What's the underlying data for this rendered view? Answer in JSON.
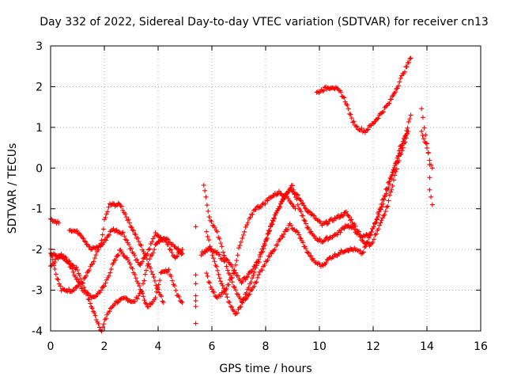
{
  "chart_data": {
    "type": "scatter",
    "title": "Day 332 of 2022, Sidereal Day-to-day VTEC variation (SDTVAR) for receiver cn13",
    "xlabel": "GPS time / hours",
    "ylabel": "SDTVAR / TECUs",
    "xlim": [
      0,
      16
    ],
    "ylim": [
      -4,
      3
    ],
    "xticks": [
      "0",
      "2",
      "4",
      "6",
      "8",
      "10",
      "12",
      "14",
      "16"
    ],
    "yticks": [
      "-4",
      "-3",
      "-2",
      "-1",
      "0",
      "1",
      "2",
      "3"
    ],
    "grid": true,
    "marker": "+",
    "color": "#ff0000",
    "series_tracks": [
      [
        [
          0.0,
          -1.25
        ],
        [
          0.3,
          -1.35
        ]
      ],
      [
        [
          0.0,
          -2.1
        ],
        [
          0.5,
          -2.2
        ],
        [
          1.0,
          -2.5
        ],
        [
          1.4,
          -3.2
        ],
        [
          1.7,
          -3.7
        ],
        [
          1.9,
          -4.0
        ],
        [
          2.1,
          -3.6
        ],
        [
          2.4,
          -3.3
        ],
        [
          2.8,
          -3.2
        ],
        [
          3.1,
          -3.3
        ],
        [
          3.4,
          -3.0
        ],
        [
          3.6,
          -2.4
        ],
        [
          3.9,
          -1.9
        ],
        [
          4.2,
          -1.7
        ],
        [
          4.6,
          -1.9
        ],
        [
          4.9,
          -2.1
        ]
      ],
      [
        [
          0.0,
          -2.0
        ],
        [
          0.2,
          -2.6
        ],
        [
          0.4,
          -3.0
        ],
        [
          0.8,
          -3.0
        ],
        [
          1.2,
          -2.8
        ],
        [
          1.6,
          -2.3
        ],
        [
          1.9,
          -1.8
        ],
        [
          2.0,
          -1.3
        ],
        [
          2.2,
          -0.9
        ],
        [
          2.6,
          -0.9
        ],
        [
          2.9,
          -1.3
        ],
        [
          3.2,
          -1.7
        ],
        [
          3.5,
          -2.1
        ],
        [
          3.8,
          -2.6
        ],
        [
          4.0,
          -3.0
        ],
        [
          4.2,
          -3.3
        ]
      ],
      [
        [
          0.0,
          -2.4
        ],
        [
          0.4,
          -2.1
        ],
        [
          0.8,
          -2.5
        ],
        [
          1.2,
          -3.0
        ],
        [
          1.6,
          -3.2
        ],
        [
          2.0,
          -2.9
        ],
        [
          2.3,
          -2.4
        ],
        [
          2.6,
          -2.0
        ],
        [
          3.0,
          -2.4
        ],
        [
          3.3,
          -2.9
        ],
        [
          3.6,
          -3.4
        ],
        [
          3.9,
          -3.2
        ],
        [
          4.1,
          -2.6
        ],
        [
          4.4,
          -2.5
        ],
        [
          4.7,
          -3.1
        ],
        [
          4.9,
          -3.3
        ]
      ],
      [
        [
          0.7,
          -1.5
        ],
        [
          1.1,
          -1.6
        ],
        [
          1.5,
          -2.0
        ],
        [
          1.9,
          -1.9
        ],
        [
          2.3,
          -1.5
        ],
        [
          2.7,
          -1.6
        ],
        [
          3.0,
          -2.0
        ],
        [
          3.3,
          -2.4
        ],
        [
          3.6,
          -2.1
        ],
        [
          3.9,
          -1.6
        ],
        [
          4.3,
          -1.8
        ],
        [
          4.6,
          -2.2
        ],
        [
          4.9,
          -2.0
        ]
      ],
      [
        [
          5.4,
          -1.4
        ],
        [
          5.4,
          -3.8
        ],
        [
          5.4,
          -2.8
        ],
        [
          5.4,
          -3.4
        ]
      ],
      [
        [
          5.7,
          -0.4
        ],
        [
          5.9,
          -1.2
        ],
        [
          6.2,
          -1.6
        ],
        [
          6.5,
          -2.2
        ],
        [
          6.8,
          -2.5
        ],
        [
          7.1,
          -2.8
        ],
        [
          7.4,
          -2.6
        ],
        [
          7.7,
          -2.3
        ],
        [
          8.0,
          -1.8
        ],
        [
          8.3,
          -1.2
        ],
        [
          8.6,
          -0.8
        ],
        [
          8.9,
          -0.5
        ],
        [
          9.2,
          -0.7
        ],
        [
          9.5,
          -1.0
        ],
        [
          9.8,
          -1.2
        ],
        [
          10.1,
          -1.4
        ],
        [
          10.4,
          -1.3
        ],
        [
          10.7,
          -1.2
        ],
        [
          11.0,
          -1.1
        ],
        [
          11.3,
          -1.4
        ],
        [
          11.6,
          -1.7
        ],
        [
          11.9,
          -1.6
        ],
        [
          12.1,
          -1.3
        ],
        [
          12.3,
          -0.9
        ],
        [
          12.6,
          -0.3
        ],
        [
          12.9,
          0.2
        ],
        [
          13.2,
          0.8
        ],
        [
          13.4,
          1.3
        ]
      ],
      [
        [
          5.8,
          -1.6
        ],
        [
          6.1,
          -2.3
        ],
        [
          6.4,
          -2.9
        ],
        [
          6.7,
          -3.4
        ],
        [
          6.9,
          -3.6
        ],
        [
          7.2,
          -3.2
        ],
        [
          7.5,
          -2.7
        ],
        [
          7.8,
          -2.2
        ],
        [
          8.1,
          -1.6
        ],
        [
          8.4,
          -1.1
        ],
        [
          8.7,
          -0.7
        ],
        [
          9.0,
          -0.4
        ],
        [
          9.2,
          -0.9
        ],
        [
          9.5,
          -1.4
        ],
        [
          9.8,
          -1.7
        ],
        [
          10.1,
          -1.8
        ],
        [
          10.4,
          -1.7
        ],
        [
          10.7,
          -1.6
        ],
        [
          11.0,
          -1.4
        ],
        [
          11.3,
          -1.5
        ],
        [
          11.6,
          -1.8
        ],
        [
          11.9,
          -1.9
        ],
        [
          12.2,
          -1.5
        ],
        [
          12.5,
          -1.0
        ],
        [
          12.8,
          -0.2
        ],
        [
          13.0,
          0.3
        ],
        [
          13.3,
          0.9
        ]
      ],
      [
        [
          5.6,
          -2.1
        ],
        [
          5.9,
          -2.0
        ],
        [
          6.2,
          -2.1
        ],
        [
          6.5,
          -2.3
        ],
        [
          6.8,
          -2.9
        ],
        [
          7.1,
          -3.3
        ],
        [
          7.4,
          -3.1
        ],
        [
          7.7,
          -2.7
        ],
        [
          8.0,
          -2.3
        ],
        [
          8.3,
          -2.0
        ],
        [
          8.6,
          -1.7
        ],
        [
          8.9,
          -1.4
        ],
        [
          9.2,
          -1.6
        ],
        [
          9.5,
          -2.0
        ],
        [
          9.8,
          -2.3
        ],
        [
          10.1,
          -2.4
        ],
        [
          10.4,
          -2.2
        ],
        [
          10.7,
          -2.1
        ],
        [
          11.0,
          -2.0
        ],
        [
          11.3,
          -2.0
        ],
        [
          11.6,
          -2.1
        ],
        [
          11.8,
          -1.8
        ],
        [
          12.1,
          -1.3
        ],
        [
          12.4,
          -0.8
        ],
        [
          12.7,
          -0.2
        ],
        [
          13.0,
          0.5
        ],
        [
          13.3,
          0.9
        ]
      ],
      [
        [
          5.8,
          -2.6
        ],
        [
          6.0,
          -3.0
        ],
        [
          6.2,
          -3.2
        ],
        [
          6.5,
          -3.0
        ],
        [
          6.8,
          -2.6
        ],
        [
          7.0,
          -2.0
        ],
        [
          7.3,
          -1.4
        ],
        [
          7.6,
          -1.0
        ],
        [
          7.9,
          -0.9
        ],
        [
          8.2,
          -0.7
        ],
        [
          8.5,
          -0.6
        ],
        [
          8.8,
          -0.7
        ],
        [
          9.1,
          -1.0
        ]
      ],
      [
        [
          9.9,
          1.85
        ],
        [
          10.2,
          1.95
        ],
        [
          10.5,
          2.0
        ],
        [
          10.8,
          1.85
        ],
        [
          11.0,
          1.6
        ],
        [
          11.2,
          1.2
        ],
        [
          11.4,
          1.0
        ],
        [
          11.7,
          0.9
        ],
        [
          12.0,
          1.1
        ],
        [
          12.3,
          1.35
        ],
        [
          12.6,
          1.6
        ],
        [
          12.9,
          2.0
        ],
        [
          13.1,
          2.3
        ],
        [
          13.4,
          2.7
        ]
      ],
      [
        [
          13.8,
          1.5
        ],
        [
          13.9,
          1.0
        ],
        [
          14.0,
          0.6
        ],
        [
          14.1,
          0.1
        ],
        [
          14.1,
          -0.5
        ],
        [
          14.2,
          -0.9
        ]
      ],
      [
        [
          13.8,
          0.9
        ],
        [
          14.0,
          0.5
        ],
        [
          14.1,
          0.2
        ],
        [
          14.2,
          0.0
        ]
      ]
    ]
  }
}
